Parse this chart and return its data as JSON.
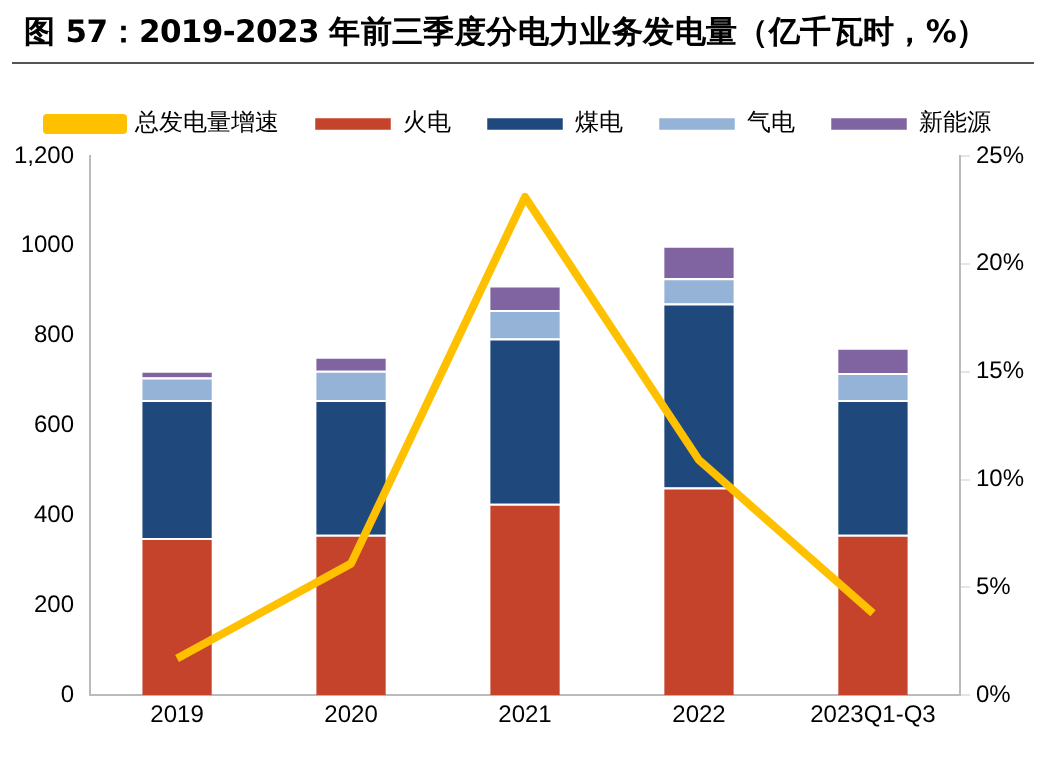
{
  "chart_data": {
    "type": "bar",
    "title": "图 57：2019-2023 年前三季度分电力业务发电量（亿千瓦时，%）",
    "categories": [
      "2019",
      "2020",
      "2021",
      "2022",
      "2023Q1-Q3"
    ],
    "stacked": true,
    "series": [
      {
        "name": "火电",
        "color": "#c5432a",
        "values": [
          350,
          357,
          426,
          462,
          357
        ]
      },
      {
        "name": "煤电",
        "color": "#1f497d",
        "values": [
          307,
          300,
          368,
          410,
          300
        ]
      },
      {
        "name": "气电",
        "color": "#95b3d7",
        "values": [
          50,
          65,
          63,
          56,
          60
        ]
      },
      {
        "name": "新能源",
        "color": "#8064a2",
        "values": [
          15,
          31,
          55,
          72,
          56
        ]
      },
      {
        "name": "总发电量增速",
        "color": "#ffc000",
        "type": "line",
        "axis": "y2",
        "values": [
          1.7,
          6.1,
          23.1,
          10.9,
          3.8
        ]
      }
    ],
    "ylim": [
      0,
      1200
    ],
    "yticks": [
      0,
      200,
      400,
      600,
      800,
      1000,
      {
        "value": 1200,
        "label": "1,200"
      }
    ],
    "y2lim": [
      0,
      25
    ],
    "y2ticks": [
      {
        "value": 0,
        "label": "0%"
      },
      {
        "value": 5,
        "label": "5%"
      },
      {
        "value": 10,
        "label": "10%"
      },
      {
        "value": 15,
        "label": "15%"
      },
      {
        "value": 20,
        "label": "20%"
      },
      {
        "value": 25,
        "label": "25%"
      }
    ],
    "grid": false,
    "legend": "top",
    "marker": "none"
  }
}
